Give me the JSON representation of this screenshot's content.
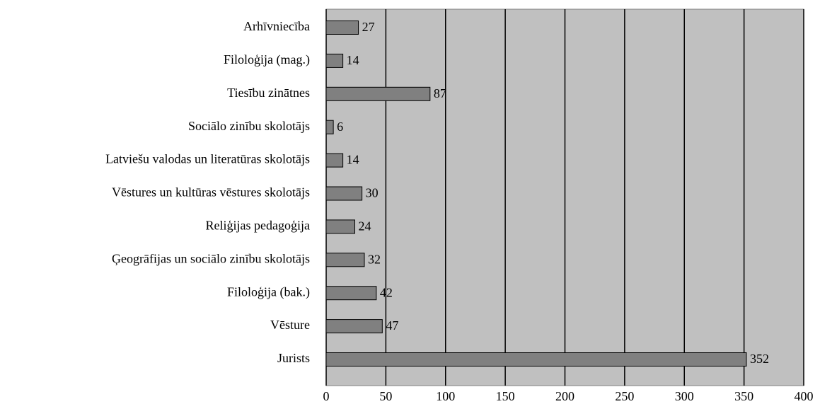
{
  "chart_data": {
    "type": "barh",
    "categories": [
      "Arhīvniecība",
      "Filoloģija (mag.)",
      "Tiesību zinātnes",
      "Sociālo zinību  skolotājs",
      "Latviešu valodas un literatūras skolotājs",
      "Vēstures un kultūras vēstures  skolotājs",
      "Reliģijas pedagoģija",
      "Ģeogrāfijas un sociālo zinību skolotājs",
      "Filoloģija (bak.)",
      "Vēsture",
      "Jurists"
    ],
    "values": [
      27,
      14,
      87,
      6,
      14,
      30,
      24,
      32,
      42,
      47,
      352
    ],
    "color": "#808080",
    "xlim": [
      0,
      400
    ],
    "xticks": [
      0,
      50,
      100,
      150,
      200,
      250,
      300,
      350,
      400
    ],
    "grid": true
  }
}
